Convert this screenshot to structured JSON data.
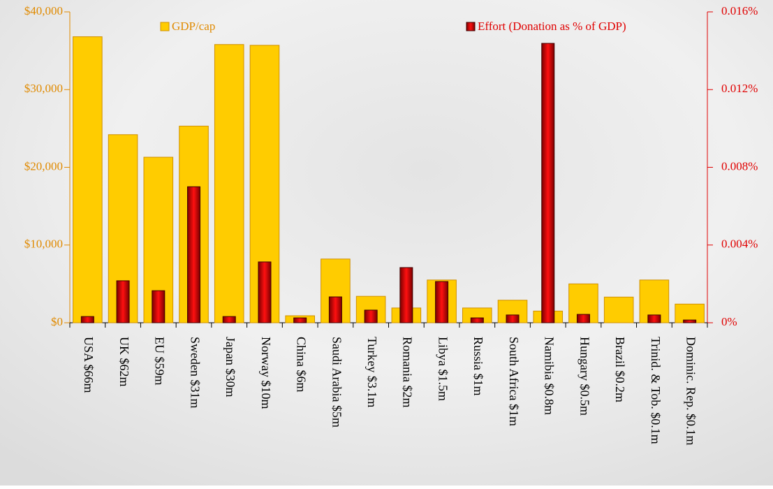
{
  "chart_data": {
    "type": "bar",
    "categories": [
      "USA $66m",
      "UK $62m",
      "EU $59m",
      "Sweden $31m",
      "Japan $30m",
      "Norway $10m",
      "China $6m",
      "Saudi Arabia $5m",
      "Turkey $3.1m",
      "Romania $2m",
      "Libya $1.5m",
      "Russia $1m",
      "South Africa $1m",
      "Namibia $0.8m",
      "Hungary $0.5m",
      "Brazil $0.2m",
      "Trinid. & Tob. $0.1m",
      "Dominic. Rep. $0.1m"
    ],
    "series": [
      {
        "name": "GDP/cap",
        "color": "#ffcc00",
        "values": [
          36800,
          24200,
          21300,
          25300,
          35800,
          35700,
          900,
          8200,
          3400,
          1900,
          5500,
          1900,
          2900,
          1500,
          5000,
          3300,
          5500,
          2400
        ]
      },
      {
        "name": "Effort (Donation as % of GDP)",
        "color": "#e00000",
        "axis": "y2",
        "values": [
          0.00032,
          0.00216,
          0.00165,
          0.007,
          0.00032,
          0.00313,
          0.00025,
          0.00133,
          0.00065,
          0.00284,
          0.00212,
          0.00025,
          0.0004,
          0.01438,
          0.00043,
          0,
          0.0004,
          0.00014
        ]
      }
    ],
    "ylim": [
      0,
      40000
    ],
    "yticks": [
      {
        "value": 0,
        "label": "$0"
      },
      {
        "value": 10000,
        "label": "$10,000"
      },
      {
        "value": 20000,
        "label": "$20,000"
      },
      {
        "value": 30000,
        "label": "$30,000"
      },
      {
        "value": 40000,
        "label": "$40,000"
      }
    ],
    "y2lim": [
      0,
      0.016
    ],
    "y2ticks": [
      {
        "value": 0,
        "label": "0%"
      },
      {
        "value": 0.004,
        "label": "0.004%"
      },
      {
        "value": 0.008,
        "label": "0.008%"
      },
      {
        "value": 0.012,
        "label": "0.012%"
      },
      {
        "value": 0.016,
        "label": "0.016%"
      }
    ],
    "grid": false
  }
}
